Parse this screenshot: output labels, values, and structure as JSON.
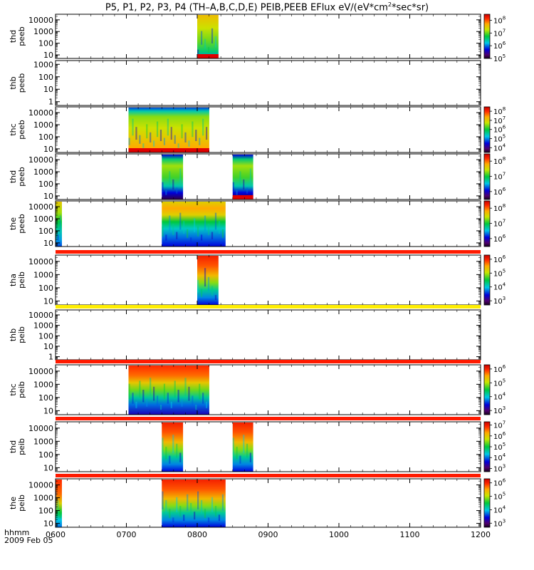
{
  "title": {
    "main": "P5, P1, P2, P3, P4 (TH–A,B,C,D,E) PEIB,PEEB EFlux eV/(eV*cm",
    "exp": "2",
    "tail": "*sec*sr)"
  },
  "footer": {
    "hhmm": "hhmm",
    "date": "2009 Feb 05"
  },
  "chart_data": {
    "type": "heatmap",
    "x_label": "hhmm",
    "x_ticks": [
      "0600",
      "0700",
      "0800",
      "0900",
      "1000",
      "1100",
      "1200"
    ],
    "x_range": [
      "0600",
      "1200"
    ],
    "y_scale": "log",
    "colormap": "rainbow (black-purple-blue-cyan-green-yellow-red)",
    "panels": [
      {
        "label": [
          "thd",
          "peeb"
        ],
        "y_ticks": [
          "10000",
          "1000",
          "100",
          "10"
        ],
        "y_range": [
          5,
          30000
        ],
        "colorbar": {
          "ticks": [
            {
              "b": "10",
              "e": "8"
            },
            {
              "b": "10",
              "e": "7"
            },
            {
              "b": "10",
              "e": "6"
            },
            {
              "b": "10",
              "e": "5"
            }
          ],
          "range": [
            100000,
            300000000
          ]
        },
        "blocks": [
          {
            "start": "0800",
            "end": "0830",
            "fill": "spec_hi",
            "floor": "red"
          }
        ]
      },
      {
        "label": [
          "thb",
          "peeb"
        ],
        "y_ticks": [
          "1000",
          "100",
          "10",
          "1"
        ],
        "y_range": [
          0.5,
          2000
        ],
        "colorbar": null,
        "blocks": []
      },
      {
        "label": [
          "thc",
          "peeb"
        ],
        "y_ticks": [
          "10000",
          "1000",
          "100",
          "10"
        ],
        "y_range": [
          5,
          30000
        ],
        "colorbar": {
          "ticks": [
            {
              "b": "10",
              "e": "8"
            },
            {
              "b": "10",
              "e": "7"
            },
            {
              "b": "10",
              "e": "6"
            },
            {
              "b": "10",
              "e": "5"
            },
            {
              "b": "10",
              "e": "4"
            }
          ],
          "range": [
            3000,
            300000000
          ]
        },
        "blocks": [
          {
            "start": "0703",
            "end": "0817",
            "fill": "spec_wide",
            "floor": "red"
          }
        ]
      },
      {
        "label": [
          "thd",
          "peeb"
        ],
        "y_ticks": [
          "10000",
          "1000",
          "100",
          "10"
        ],
        "y_range": [
          5,
          30000
        ],
        "colorbar": {
          "ticks": [
            {
              "b": "10",
              "e": "8"
            },
            {
              "b": "10",
              "e": "7"
            },
            {
              "b": "10",
              "e": "6"
            }
          ],
          "range": [
            300000,
            300000000
          ]
        },
        "blocks": [
          {
            "start": "0750",
            "end": "0780",
            "fill": "spec_mid",
            "floor": "none"
          },
          {
            "start": "0850",
            "end": "0879",
            "fill": "spec_mid",
            "floor": "red"
          }
        ]
      },
      {
        "label": [
          "the",
          "peeb"
        ],
        "y_ticks": [
          "10000",
          "1000",
          "100",
          "10"
        ],
        "y_range": [
          5,
          30000
        ],
        "colorbar": {
          "ticks": [
            {
              "b": "10",
              "e": "8"
            },
            {
              "b": "10",
              "e": "7"
            },
            {
              "b": "10",
              "e": "6"
            }
          ],
          "range": [
            300000,
            300000000
          ]
        },
        "blocks": [
          {
            "start": "0600",
            "end": "0609",
            "fill": "spec_edge",
            "floor": "none"
          },
          {
            "start": "0750",
            "end": "0840",
            "fill": "spec_the",
            "floor": "none"
          }
        ]
      },
      {
        "label": [
          "tha",
          "peib"
        ],
        "y_ticks": [
          "10000",
          "1000",
          "100",
          "10"
        ],
        "y_range": [
          5,
          30000
        ],
        "colorbar": {
          "ticks": [
            {
              "b": "10",
              "e": "6"
            },
            {
              "b": "10",
              "e": "5"
            },
            {
              "b": "10",
              "e": "4"
            },
            {
              "b": "10",
              "e": "3"
            }
          ],
          "range": [
            500,
            2000000
          ]
        },
        "blocks": [
          {
            "start": "0800",
            "end": "0830",
            "fill": "ion",
            "floor": "none"
          }
        ],
        "separator": "red"
      },
      {
        "label": [
          "thb",
          "peib"
        ],
        "y_ticks": [
          "10000",
          "1000",
          "100",
          "10",
          "1"
        ],
        "y_range": [
          0.5,
          30000
        ],
        "colorbar": null,
        "blocks": [],
        "separator": "yellow"
      },
      {
        "label": [
          "thc",
          "peib"
        ],
        "y_ticks": [
          "10000",
          "1000",
          "100",
          "10"
        ],
        "y_range": [
          5,
          30000
        ],
        "colorbar": {
          "ticks": [
            {
              "b": "10",
              "e": "6"
            },
            {
              "b": "10",
              "e": "5"
            },
            {
              "b": "10",
              "e": "4"
            },
            {
              "b": "10",
              "e": "3"
            }
          ],
          "range": [
            500,
            2000000
          ]
        },
        "blocks": [
          {
            "start": "0703",
            "end": "0817",
            "fill": "ion_wide",
            "floor": "none"
          }
        ],
        "separator": "red"
      },
      {
        "label": [
          "thd",
          "peib"
        ],
        "y_ticks": [
          "10000",
          "1000",
          "100",
          "10"
        ],
        "y_range": [
          5,
          30000
        ],
        "colorbar": {
          "ticks": [
            {
              "b": "10",
              "e": "7"
            },
            {
              "b": "10",
              "e": "6"
            },
            {
              "b": "10",
              "e": "5"
            },
            {
              "b": "10",
              "e": "4"
            },
            {
              "b": "10",
              "e": "3"
            }
          ],
          "range": [
            500,
            20000000
          ]
        },
        "blocks": [
          {
            "start": "0750",
            "end": "0780",
            "fill": "ion",
            "floor": "none"
          },
          {
            "start": "0850",
            "end": "0879",
            "fill": "ion",
            "floor": "none"
          }
        ],
        "separator": "red"
      },
      {
        "label": [
          "the",
          "peib"
        ],
        "y_ticks": [
          "10000",
          "1000",
          "100",
          "10"
        ],
        "y_range": [
          5,
          30000
        ],
        "colorbar": {
          "ticks": [
            {
              "b": "10",
              "e": "6"
            },
            {
              "b": "10",
              "e": "5"
            },
            {
              "b": "10",
              "e": "4"
            },
            {
              "b": "10",
              "e": "3"
            }
          ],
          "range": [
            500,
            2000000
          ]
        },
        "blocks": [
          {
            "start": "0600",
            "end": "0609",
            "fill": "ion_edge",
            "floor": "none"
          },
          {
            "start": "0750",
            "end": "0840",
            "fill": "ion",
            "floor": "none"
          }
        ],
        "separator": "red"
      }
    ]
  }
}
